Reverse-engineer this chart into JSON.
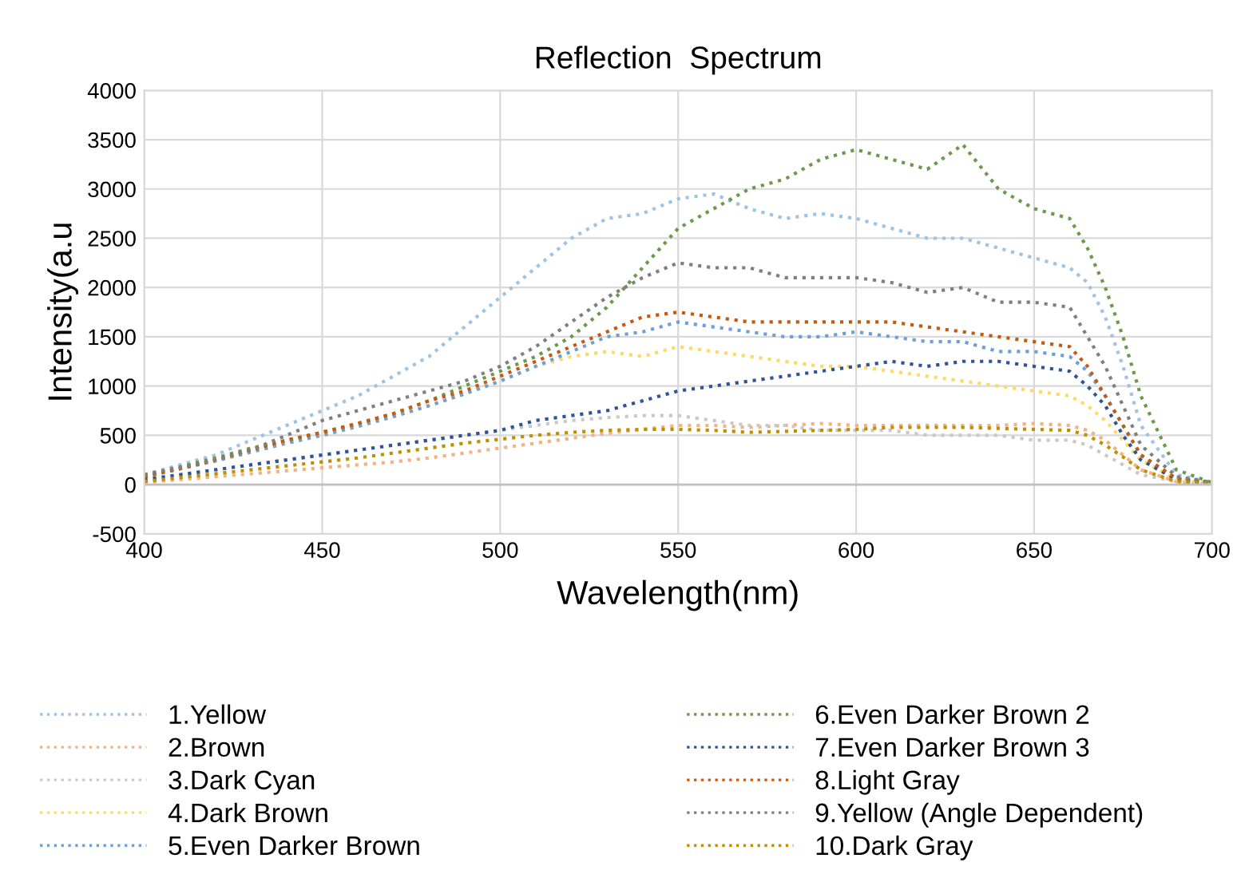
{
  "chart_data": {
    "type": "line",
    "title": "Reflection  Spectrum",
    "xlabel": "Wavelength(nm)",
    "ylabel": "Intensity(a.u",
    "x": [
      400,
      410,
      420,
      430,
      440,
      450,
      460,
      470,
      480,
      490,
      500,
      510,
      520,
      530,
      540,
      550,
      560,
      570,
      580,
      590,
      600,
      610,
      620,
      630,
      640,
      650,
      660,
      665,
      670,
      675,
      680,
      690,
      700
    ],
    "xlim": [
      400,
      700
    ],
    "xticks": [
      400,
      450,
      500,
      550,
      600,
      650,
      700
    ],
    "ylim": [
      -500,
      4000
    ],
    "yticks": [
      -500,
      0,
      500,
      1000,
      1500,
      2000,
      2500,
      3000,
      3500,
      4000
    ],
    "grid": true,
    "legend": "bottom",
    "line_style": "dotted",
    "marker": "none",
    "series": [
      {
        "name": "1.Yellow",
        "color": "#9dc3e6",
        "values": [
          100,
          200,
          300,
          450,
          600,
          750,
          900,
          1100,
          1300,
          1600,
          1900,
          2200,
          2500,
          2700,
          2750,
          2900,
          2950,
          2800,
          2700,
          2750,
          2700,
          2600,
          2500,
          2500,
          2400,
          2300,
          2200,
          2050,
          1700,
          1200,
          600,
          100,
          20
        ]
      },
      {
        "name": "2.Brown",
        "color": "#f4b183",
        "values": [
          20,
          50,
          80,
          110,
          140,
          170,
          200,
          230,
          270,
          320,
          370,
          420,
          470,
          520,
          560,
          600,
          600,
          580,
          600,
          620,
          600,
          600,
          600,
          600,
          600,
          620,
          600,
          550,
          450,
          300,
          150,
          30,
          10
        ]
      },
      {
        "name": "3.Dark Cyan",
        "color": "#c9c9c9",
        "values": [
          50,
          100,
          150,
          200,
          250,
          300,
          350,
          400,
          450,
          500,
          550,
          600,
          650,
          680,
          700,
          700,
          650,
          600,
          600,
          550,
          550,
          550,
          500,
          500,
          500,
          450,
          450,
          400,
          300,
          200,
          100,
          30,
          10
        ]
      },
      {
        "name": "4.Dark Brown",
        "color": "#ffd966",
        "values": [
          80,
          160,
          240,
          330,
          420,
          500,
          590,
          690,
          800,
          920,
          1050,
          1200,
          1300,
          1350,
          1300,
          1400,
          1350,
          1300,
          1250,
          1200,
          1200,
          1150,
          1100,
          1050,
          1000,
          950,
          900,
          800,
          650,
          450,
          250,
          50,
          10
        ]
      },
      {
        "name": "5.Even Darker Brown",
        "color": "#6f9fd8",
        "values": [
          80,
          160,
          240,
          330,
          420,
          500,
          590,
          690,
          800,
          920,
          1050,
          1200,
          1350,
          1500,
          1550,
          1650,
          1600,
          1550,
          1500,
          1500,
          1550,
          1500,
          1450,
          1450,
          1350,
          1350,
          1300,
          1150,
          900,
          600,
          300,
          60,
          15
        ]
      },
      {
        "name": "6.Even Darker Brown 2",
        "color": "#6a9a4a",
        "values": [
          100,
          180,
          270,
          370,
          450,
          530,
          620,
          720,
          850,
          1000,
          1150,
          1300,
          1500,
          1800,
          2200,
          2600,
          2800,
          3000,
          3100,
          3300,
          3400,
          3300,
          3200,
          3450,
          3000,
          2800,
          2700,
          2400,
          2000,
          1500,
          900,
          150,
          20
        ]
      },
      {
        "name": "7.Even Darker Brown 3",
        "color": "#2f5597",
        "values": [
          50,
          100,
          150,
          200,
          250,
          300,
          350,
          400,
          450,
          500,
          550,
          650,
          700,
          750,
          850,
          950,
          1000,
          1050,
          1100,
          1150,
          1200,
          1250,
          1200,
          1250,
          1250,
          1200,
          1150,
          1000,
          800,
          500,
          250,
          50,
          10
        ]
      },
      {
        "name": "8.Light Gray",
        "color": "#c55a11",
        "values": [
          80,
          160,
          250,
          350,
          450,
          530,
          620,
          720,
          850,
          950,
          1100,
          1250,
          1400,
          1550,
          1700,
          1750,
          1700,
          1650,
          1650,
          1650,
          1650,
          1650,
          1600,
          1550,
          1500,
          1450,
          1400,
          1200,
          900,
          600,
          300,
          60,
          20
        ]
      },
      {
        "name": "9.Yellow (Angle Dependent)",
        "color": "#7f7f7f",
        "values": [
          100,
          170,
          250,
          350,
          500,
          650,
          750,
          850,
          950,
          1050,
          1200,
          1400,
          1650,
          1900,
          2100,
          2250,
          2200,
          2200,
          2100,
          2100,
          2100,
          2050,
          1950,
          2000,
          1850,
          1850,
          1800,
          1500,
          1200,
          800,
          400,
          80,
          20
        ]
      },
      {
        "name": "10.Dark Gray",
        "color": "#bf9000",
        "values": [
          30,
          70,
          110,
          150,
          190,
          230,
          270,
          320,
          370,
          420,
          460,
          500,
          530,
          550,
          560,
          560,
          550,
          530,
          540,
          550,
          560,
          580,
          580,
          580,
          570,
          560,
          550,
          500,
          400,
          280,
          150,
          30,
          10
        ]
      }
    ]
  }
}
